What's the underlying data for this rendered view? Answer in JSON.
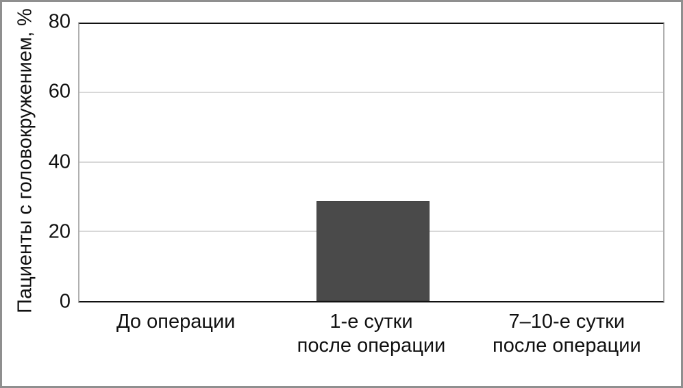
{
  "chart_data": {
    "type": "bar",
    "categories": [
      "До операции",
      "1-е сутки\nпосле операции",
      "7–10-е сутки\nпосле операции"
    ],
    "values": [
      0,
      28.5,
      0
    ],
    "title": "",
    "xlabel": "",
    "ylabel": "Пациенты с головокружением, %",
    "ylim": [
      0,
      80
    ],
    "yticks": [
      0,
      20,
      40,
      60,
      80
    ],
    "gridline_values": [
      20,
      40,
      60
    ],
    "grid": true,
    "legend": "none",
    "bar_color": "#4a4a4a",
    "gridline_color": "#d8d8d8",
    "frame_border_color": "#8f8f8f",
    "axis_line_color": "#111111",
    "side_border_color": "#b0b0b0"
  }
}
